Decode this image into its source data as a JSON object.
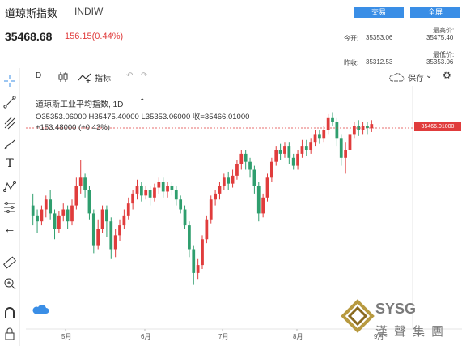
{
  "header": {
    "title": "道琼斯指数",
    "code": "INDIW",
    "trade_button": "交易",
    "fullscreen_button": "全屏"
  },
  "quote": {
    "price": "35468.68",
    "change": "156.15(0.44%)",
    "open_label": "今开:",
    "open_value": "35353.06",
    "prev_close_label": "昨收:",
    "prev_close_value": "35312.53",
    "high_label": "最高价:",
    "high_value": "35475.40",
    "low_label": "最低价:",
    "low_value": "35353.06"
  },
  "toolbar": {
    "interval": "D",
    "indicators": "指标",
    "save": "保存"
  },
  "legend": {
    "name": "道琼斯工业平均指数, 1D",
    "ohlc": "O35353.06000  H35475.40000  L35353.06000  收=35466.01000",
    "change": "+153.48000 (+0.43%)"
  },
  "price_tag": "35466.01000",
  "colors": {
    "up": "#e03c3c",
    "down": "#2f9e6e",
    "accent": "#3a8ee6"
  },
  "chart_data": {
    "type": "candlestick",
    "x_labels": [
      "5月",
      "6月",
      "7月",
      "8月",
      "9月"
    ],
    "last_close": 35466.01,
    "candles": [
      [
        0.52,
        0.47,
        0.42,
        0.58
      ],
      [
        0.47,
        0.44,
        0.38,
        0.5
      ],
      [
        0.44,
        0.5,
        0.42,
        0.52
      ],
      [
        0.5,
        0.55,
        0.46,
        0.57
      ],
      [
        0.55,
        0.48,
        0.45,
        0.6
      ],
      [
        0.48,
        0.4,
        0.35,
        0.5
      ],
      [
        0.4,
        0.47,
        0.38,
        0.49
      ],
      [
        0.47,
        0.5,
        0.44,
        0.53
      ],
      [
        0.5,
        0.44,
        0.4,
        0.52
      ],
      [
        0.44,
        0.52,
        0.42,
        0.55
      ],
      [
        0.52,
        0.62,
        0.5,
        0.66
      ],
      [
        0.62,
        0.66,
        0.58,
        0.75
      ],
      [
        0.66,
        0.6,
        0.56,
        0.68
      ],
      [
        0.6,
        0.48,
        0.45,
        0.62
      ],
      [
        0.48,
        0.32,
        0.28,
        0.5
      ],
      [
        0.32,
        0.4,
        0.3,
        0.45
      ],
      [
        0.4,
        0.5,
        0.38,
        0.52
      ],
      [
        0.5,
        0.44,
        0.36,
        0.52
      ],
      [
        0.44,
        0.3,
        0.25,
        0.46
      ],
      [
        0.3,
        0.37,
        0.26,
        0.4
      ],
      [
        0.37,
        0.42,
        0.34,
        0.45
      ],
      [
        0.42,
        0.47,
        0.4,
        0.5
      ],
      [
        0.47,
        0.53,
        0.45,
        0.56
      ],
      [
        0.53,
        0.58,
        0.5,
        0.6
      ],
      [
        0.58,
        0.62,
        0.55,
        0.65
      ],
      [
        0.62,
        0.57,
        0.54,
        0.64
      ],
      [
        0.57,
        0.6,
        0.55,
        0.62
      ],
      [
        0.6,
        0.56,
        0.52,
        0.62
      ],
      [
        0.56,
        0.61,
        0.54,
        0.63
      ],
      [
        0.61,
        0.64,
        0.58,
        0.66
      ],
      [
        0.64,
        0.59,
        0.56,
        0.66
      ],
      [
        0.59,
        0.62,
        0.56,
        0.64
      ],
      [
        0.62,
        0.6,
        0.57,
        0.64
      ],
      [
        0.6,
        0.55,
        0.52,
        0.62
      ],
      [
        0.55,
        0.5,
        0.48,
        0.57
      ],
      [
        0.5,
        0.42,
        0.4,
        0.52
      ],
      [
        0.42,
        0.3,
        0.26,
        0.44
      ],
      [
        0.3,
        0.18,
        0.12,
        0.32
      ],
      [
        0.18,
        0.22,
        0.15,
        0.25
      ],
      [
        0.22,
        0.35,
        0.2,
        0.37
      ],
      [
        0.35,
        0.45,
        0.33,
        0.47
      ],
      [
        0.45,
        0.55,
        0.43,
        0.57
      ],
      [
        0.55,
        0.58,
        0.52,
        0.6
      ],
      [
        0.58,
        0.62,
        0.55,
        0.64
      ],
      [
        0.62,
        0.66,
        0.6,
        0.68
      ],
      [
        0.66,
        0.63,
        0.6,
        0.69
      ],
      [
        0.63,
        0.67,
        0.61,
        0.7
      ],
      [
        0.67,
        0.73,
        0.65,
        0.75
      ],
      [
        0.73,
        0.78,
        0.7,
        0.8
      ],
      [
        0.78,
        0.74,
        0.7,
        0.8
      ],
      [
        0.74,
        0.7,
        0.66,
        0.76
      ],
      [
        0.7,
        0.62,
        0.58,
        0.72
      ],
      [
        0.62,
        0.48,
        0.44,
        0.64
      ],
      [
        0.48,
        0.56,
        0.46,
        0.58
      ],
      [
        0.56,
        0.66,
        0.54,
        0.68
      ],
      [
        0.66,
        0.74,
        0.64,
        0.76
      ],
      [
        0.74,
        0.8,
        0.72,
        0.82
      ],
      [
        0.8,
        0.78,
        0.75,
        0.83
      ],
      [
        0.78,
        0.82,
        0.76,
        0.84
      ],
      [
        0.82,
        0.76,
        0.73,
        0.84
      ],
      [
        0.76,
        0.72,
        0.7,
        0.78
      ],
      [
        0.72,
        0.78,
        0.7,
        0.8
      ],
      [
        0.78,
        0.82,
        0.76,
        0.85
      ],
      [
        0.82,
        0.8,
        0.77,
        0.85
      ],
      [
        0.8,
        0.84,
        0.78,
        0.86
      ],
      [
        0.84,
        0.88,
        0.82,
        0.9
      ],
      [
        0.88,
        0.86,
        0.83,
        0.9
      ],
      [
        0.86,
        0.9,
        0.84,
        0.92
      ],
      [
        0.9,
        0.96,
        0.88,
        0.98
      ],
      [
        0.96,
        0.94,
        0.92,
        0.99
      ],
      [
        0.94,
        0.86,
        0.82,
        0.96
      ],
      [
        0.86,
        0.76,
        0.72,
        0.88
      ],
      [
        0.76,
        0.8,
        0.68,
        0.84
      ],
      [
        0.8,
        0.88,
        0.78,
        0.91
      ],
      [
        0.88,
        0.92,
        0.86,
        0.94
      ],
      [
        0.92,
        0.9,
        0.87,
        0.95
      ],
      [
        0.9,
        0.92,
        0.88,
        0.94
      ],
      [
        0.92,
        0.91,
        0.88,
        0.94
      ],
      [
        0.91,
        0.93,
        0.89,
        0.95
      ]
    ]
  }
}
